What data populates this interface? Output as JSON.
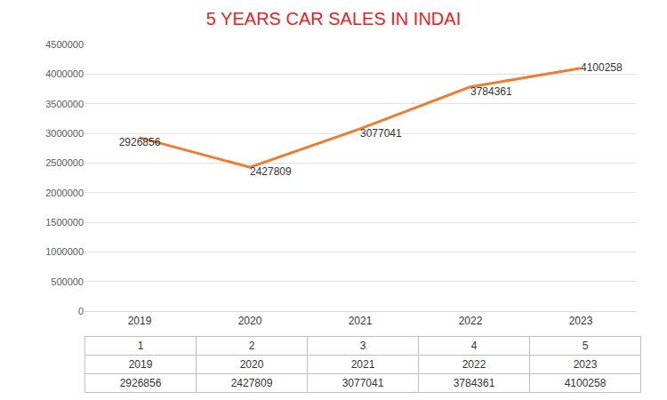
{
  "chart_data": {
    "type": "line",
    "title": "5 YEARS CAR SALES IN INDAI",
    "categories": [
      "2019",
      "2020",
      "2021",
      "2022",
      "2023"
    ],
    "values": [
      2926856,
      2427809,
      3077041,
      3784361,
      4100258
    ],
    "color": "#ed7d31",
    "ylim": [
      0,
      4500000
    ],
    "yticks": [
      0,
      500000,
      1000000,
      1500000,
      2000000,
      2500000,
      3000000,
      3500000,
      4000000,
      4500000
    ],
    "grid": true,
    "data_labels": true
  },
  "table": {
    "rows": [
      [
        1,
        2,
        3,
        4,
        5
      ],
      [
        "2019",
        "2020",
        "2021",
        "2022",
        "2023"
      ],
      [
        2926856,
        2427809,
        3077041,
        3784361,
        4100258
      ]
    ]
  }
}
